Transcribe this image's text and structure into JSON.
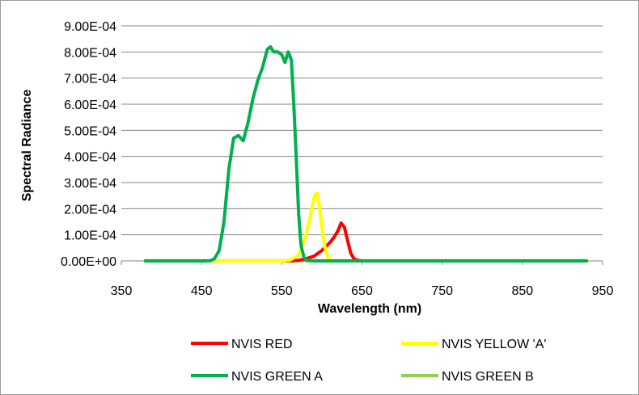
{
  "chart_data": {
    "type": "line",
    "title": "",
    "xlabel": "Wavelength (nm)",
    "ylabel": "Spectral Radiance",
    "xlim": [
      350,
      950
    ],
    "ylim": [
      0,
      0.0009
    ],
    "x_ticks": [
      350,
      450,
      550,
      650,
      750,
      850,
      950
    ],
    "x_tick_labels": [
      "350",
      "450",
      "550",
      "650",
      "750",
      "850",
      "950"
    ],
    "y_ticks": [
      0,
      0.0001,
      0.0002,
      0.0003,
      0.0004,
      0.0005,
      0.0006,
      0.0007,
      0.0008,
      0.0009
    ],
    "y_tick_labels": [
      "0.00E+00",
      "1.00E-04",
      "2.00E-04",
      "3.00E-04",
      "4.00E-04",
      "5.00E-04",
      "6.00E-04",
      "7.00E-04",
      "8.00E-04",
      "9.00E-04"
    ],
    "grid": "horizontal",
    "legend_position": "bottom",
    "series": [
      {
        "name": "NVIS RED",
        "color": "#ff0000",
        "x": [
          380,
          560,
          570,
          580,
          590,
          600,
          610,
          615,
          620,
          624,
          628,
          632,
          636,
          640,
          645,
          650,
          930
        ],
        "y": [
          0,
          0,
          2e-06,
          8e-06,
          1.8e-05,
          4e-05,
          7e-05,
          9e-05,
          0.000115,
          0.000145,
          0.00013,
          8e-05,
          3e-05,
          8e-06,
          2e-06,
          0,
          0
        ]
      },
      {
        "name": "NVIS YELLOW 'A'",
        "color": "#ffff00",
        "x": [
          380,
          550,
          560,
          570,
          575,
          580,
          585,
          588,
          591,
          594,
          597,
          600,
          604,
          608,
          612,
          620,
          930
        ],
        "y": [
          0,
          0,
          3e-06,
          2e-05,
          5e-05,
          0.0001,
          0.00016,
          0.00021,
          0.00025,
          0.00026,
          0.00021,
          0.00013,
          5e-05,
          1e-05,
          2e-06,
          0,
          0
        ]
      },
      {
        "name": "NVIS GREEN A",
        "color": "#00b050",
        "x": [
          380,
          460,
          466,
          472,
          478,
          484,
          490,
          496,
          502,
          508,
          514,
          520,
          526,
          532,
          536,
          540,
          545,
          550,
          554,
          558,
          562,
          565,
          568,
          571,
          574,
          578,
          582,
          590,
          930
        ],
        "y": [
          0,
          0,
          8e-06,
          4e-05,
          0.00015,
          0.00035,
          0.00047,
          0.00048,
          0.00046,
          0.00053,
          0.00062,
          0.00069,
          0.00074,
          0.00081,
          0.00082,
          0.0008,
          0.0008,
          0.00079,
          0.00076,
          0.0008,
          0.00077,
          0.0006,
          0.0004,
          0.00018,
          6e-05,
          1e-05,
          2e-06,
          0,
          0
        ]
      },
      {
        "name": "NVIS GREEN B",
        "color": "#92d050",
        "x": [
          380,
          930
        ],
        "y": [
          5e-07,
          5e-07
        ]
      }
    ]
  }
}
